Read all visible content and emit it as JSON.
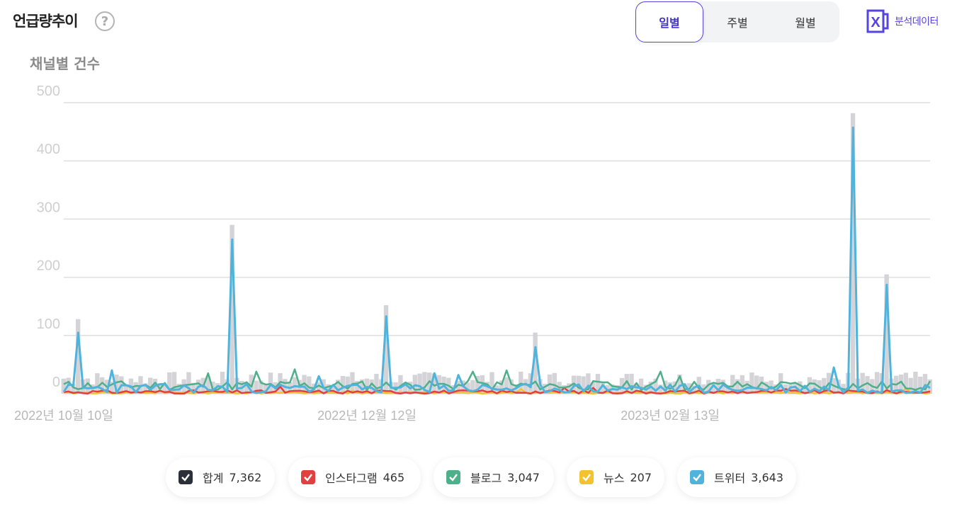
{
  "header": {
    "title": "언급량추이",
    "help_glyph": "?",
    "periods": [
      "일별",
      "주별",
      "월별"
    ],
    "active_period": "일별",
    "export_label": "분석데이터",
    "export_icon": "excel-x-icon",
    "export_glyph": "X"
  },
  "colors": {
    "accent": "#5544dd",
    "total": "#2b2f38",
    "instagram": "#e04040",
    "blog": "#4db08a",
    "news": "#f2c230",
    "twitter": "#4fb3dc",
    "total_area": "#d4d4d8"
  },
  "legend": [
    {
      "name": "합계",
      "value": "7,362",
      "color": "#2b2f38"
    },
    {
      "name": "인스타그램",
      "value": "465",
      "color": "#e04040"
    },
    {
      "name": "블로그",
      "value": "3,047",
      "color": "#4db08a"
    },
    {
      "name": "뉴스",
      "value": "207",
      "color": "#f2c230"
    },
    {
      "name": "트위터",
      "value": "3,643",
      "color": "#4fb3dc"
    }
  ],
  "chart_data": {
    "type": "line",
    "ylabel": "채널별 건수",
    "yticks": [
      0,
      100,
      200,
      300,
      400,
      500
    ],
    "ylim": [
      0,
      500
    ],
    "xlabels": [
      "2022년 10월 10일",
      "2022년 12월 12일",
      "2023년 02월 13일"
    ],
    "xlabel_days": [
      0,
      63,
      126
    ],
    "days": 181,
    "grid": true,
    "series": [
      {
        "name": "합계",
        "type": "bar",
        "color": "#d4d4d8",
        "spikes": [
          [
            3,
            128
          ],
          [
            35,
            290
          ],
          [
            67,
            152
          ],
          [
            98,
            105
          ],
          [
            164,
            482
          ],
          [
            171,
            205
          ]
        ]
      },
      {
        "name": "블로그",
        "type": "line",
        "color": "#4db08a",
        "spikes": [
          [
            30,
            35
          ],
          [
            40,
            38
          ],
          [
            48,
            42
          ],
          [
            85,
            38
          ],
          [
            92,
            40
          ],
          [
            124,
            38
          ],
          [
            128,
            30
          ]
        ]
      },
      {
        "name": "트위터",
        "type": "line",
        "color": "#4fb3dc",
        "spikes": [
          [
            3,
            105
          ],
          [
            35,
            265
          ],
          [
            67,
            133
          ],
          [
            98,
            80
          ],
          [
            10,
            40
          ],
          [
            53,
            30
          ],
          [
            77,
            35
          ],
          [
            82,
            32
          ],
          [
            160,
            45
          ],
          [
            164,
            457
          ],
          [
            171,
            187
          ]
        ]
      },
      {
        "name": "인스타그램",
        "type": "line",
        "color": "#e04040",
        "spikes": [
          [
            45,
            12
          ],
          [
            104,
            10
          ],
          [
            110,
            10
          ],
          [
            150,
            8
          ]
        ]
      },
      {
        "name": "뉴스",
        "type": "line",
        "color": "#f2c230",
        "spikes": [
          [
            20,
            6
          ],
          [
            60,
            5
          ],
          [
            95,
            8
          ],
          [
            140,
            6
          ],
          [
            175,
            10
          ]
        ]
      }
    ]
  }
}
